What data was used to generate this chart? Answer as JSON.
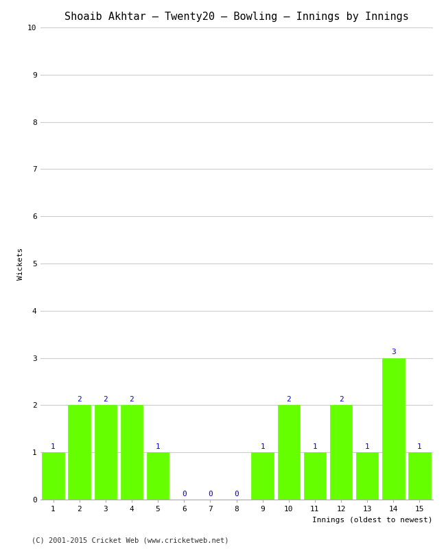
{
  "title": "Shoaib Akhtar – Twenty20 – Bowling – Innings by Innings",
  "xlabel": "Innings (oldest to newest)",
  "ylabel": "Wickets",
  "footer": "(C) 2001-2015 Cricket Web (www.cricketweb.net)",
  "innings": [
    1,
    2,
    3,
    4,
    5,
    6,
    7,
    8,
    9,
    10,
    11,
    12,
    13,
    14,
    15
  ],
  "wickets": [
    1,
    2,
    2,
    2,
    1,
    0,
    0,
    0,
    1,
    2,
    1,
    2,
    1,
    3,
    1
  ],
  "bar_color": "#66ff00",
  "bar_edge_color": "#66ff00",
  "label_color": "#0000cc",
  "background_color": "#ffffff",
  "grid_color": "#cccccc",
  "ylim": [
    0,
    10
  ],
  "yticks": [
    0,
    1,
    2,
    3,
    4,
    5,
    6,
    7,
    8,
    9,
    10
  ],
  "title_fontsize": 11,
  "axis_label_fontsize": 8,
  "tick_label_fontsize": 8,
  "bar_label_fontsize": 8,
  "footer_fontsize": 7.5
}
